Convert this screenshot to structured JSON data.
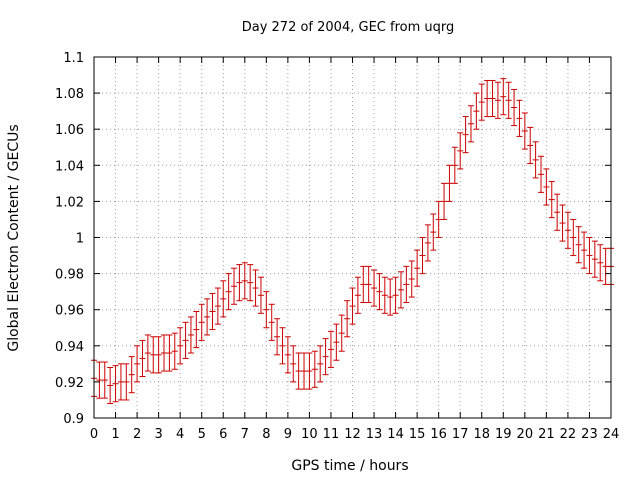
{
  "chart_data": {
    "type": "scatter",
    "title": "Day 272 of 2004, GEC from uqrg",
    "xlabel": "GPS time / hours",
    "ylabel": "Global Electron Content / GECUs",
    "xlim": [
      0,
      24
    ],
    "ylim": [
      0.9,
      1.1
    ],
    "xticks": [
      "0",
      "1",
      "2",
      "3",
      "4",
      "5",
      "6",
      "7",
      "8",
      "9",
      "10",
      "11",
      "12",
      "13",
      "14",
      "15",
      "16",
      "17",
      "18",
      "19",
      "20",
      "21",
      "22",
      "23",
      "24"
    ],
    "yticks": [
      "0.9",
      "0.92",
      "0.94",
      "0.96",
      "0.98",
      "1",
      "1.02",
      "1.04",
      "1.06",
      "1.08",
      "1.1"
    ],
    "grid": true,
    "legend": "none",
    "error_bar": 0.01,
    "color": "#cc0000",
    "series": [
      {
        "x": [
          0,
          0.25,
          0.5,
          0.75,
          1,
          1.25,
          1.5,
          1.75,
          2,
          2.25,
          2.5,
          2.75,
          3,
          3.25,
          3.5,
          3.75,
          4,
          4.25,
          4.5,
          4.75,
          5,
          5.25,
          5.5,
          5.75,
          6,
          6.25,
          6.5,
          6.75,
          7,
          7.25,
          7.5,
          7.75,
          8,
          8.25,
          8.5,
          8.75,
          9,
          9.25,
          9.5,
          9.75,
          10,
          10.25,
          10.5,
          10.75,
          11,
          11.25,
          11.5,
          11.75,
          12,
          12.25,
          12.5,
          12.75,
          13,
          13.25,
          13.5,
          13.75,
          14,
          14.25,
          14.5,
          14.75,
          15,
          15.25,
          15.5,
          15.75,
          16,
          16.25,
          16.5,
          16.75,
          17,
          17.25,
          17.5,
          17.75,
          18,
          18.25,
          18.5,
          18.75,
          19,
          19.25,
          19.5,
          19.75,
          20,
          20.25,
          20.5,
          20.75,
          21,
          21.25,
          21.5,
          21.75,
          22,
          22.25,
          22.5,
          22.75,
          23,
          23.25,
          23.5,
          23.75,
          24
        ],
        "y": [
          0.922,
          0.921,
          0.921,
          0.918,
          0.919,
          0.92,
          0.92,
          0.924,
          0.93,
          0.933,
          0.936,
          0.935,
          0.935,
          0.936,
          0.936,
          0.937,
          0.94,
          0.943,
          0.946,
          0.949,
          0.953,
          0.956,
          0.959,
          0.962,
          0.966,
          0.97,
          0.973,
          0.975,
          0.976,
          0.975,
          0.972,
          0.968,
          0.96,
          0.953,
          0.945,
          0.94,
          0.935,
          0.93,
          0.926,
          0.926,
          0.926,
          0.927,
          0.93,
          0.934,
          0.938,
          0.942,
          0.947,
          0.955,
          0.962,
          0.968,
          0.974,
          0.974,
          0.972,
          0.97,
          0.968,
          0.967,
          0.968,
          0.971,
          0.974,
          0.977,
          0.983,
          0.99,
          0.997,
          1.003,
          1.01,
          1.02,
          1.03,
          1.04,
          1.048,
          1.057,
          1.063,
          1.07,
          1.075,
          1.077,
          1.077,
          1.076,
          1.078,
          1.076,
          1.072,
          1.066,
          1.059,
          1.051,
          1.043,
          1.035,
          1.028,
          1.021,
          1.014,
          1.008,
          1.004,
          1.0,
          0.996,
          0.993,
          0.99,
          0.988,
          0.986,
          0.984,
          0.984
        ]
      }
    ]
  }
}
